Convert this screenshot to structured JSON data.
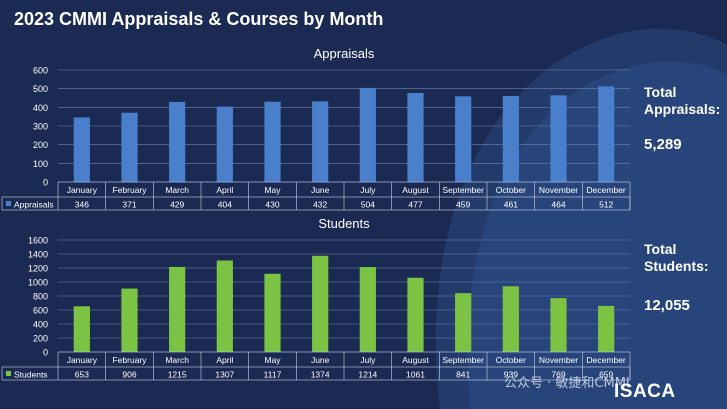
{
  "title": "2023 CMMI Appraisals & Courses by Month",
  "totals": {
    "appraisals_label": "Total Appraisals:",
    "appraisals_value": "5,289",
    "students_label_1": "Total",
    "students_label_2": "Students:",
    "students_value": "12,055"
  },
  "watermark": "公众号 · 敏捷和CMMI",
  "logo": "ISACA",
  "colors": {
    "background": "#1b2a52",
    "appraisals_bar": "#4a7fcc",
    "students_bar": "#7cc243",
    "swoosh": "#2b4f86"
  },
  "chart_data": [
    {
      "type": "bar",
      "title": "Appraisals",
      "categories": [
        "January",
        "February",
        "March",
        "April",
        "May",
        "June",
        "July",
        "August",
        "September",
        "October",
        "November",
        "December"
      ],
      "series": [
        {
          "name": "Appraisals",
          "values": [
            346,
            371,
            429,
            404,
            430,
            432,
            504,
            477,
            459,
            461,
            464,
            512
          ]
        }
      ],
      "yticks": [
        0,
        100,
        200,
        300,
        400,
        500,
        600
      ],
      "ylim": [
        0,
        600
      ],
      "grid": true,
      "data_table": true
    },
    {
      "type": "bar",
      "title": "Students",
      "categories": [
        "January",
        "February",
        "March",
        "April",
        "May",
        "June",
        "July",
        "August",
        "September",
        "October",
        "November",
        "December"
      ],
      "series": [
        {
          "name": "Students",
          "values": [
            653,
            906,
            1215,
            1307,
            1117,
            1374,
            1214,
            1061,
            841,
            939,
            769,
            659
          ]
        }
      ],
      "yticks": [
        0,
        200,
        400,
        600,
        800,
        1000,
        1200,
        1400,
        1600
      ],
      "ylim": [
        0,
        1600
      ],
      "grid": true,
      "data_table": true
    }
  ]
}
